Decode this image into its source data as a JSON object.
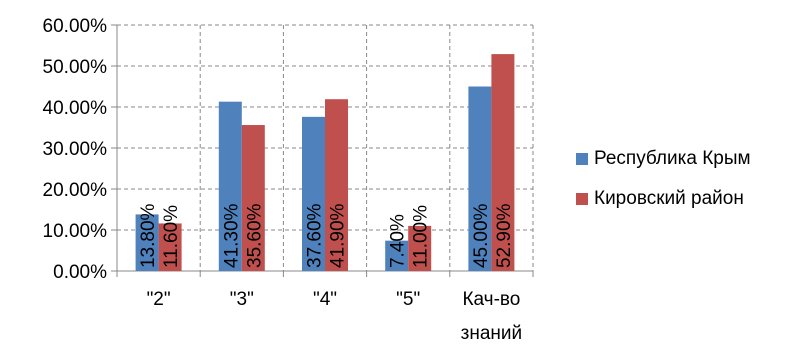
{
  "chart_data": {
    "type": "bar",
    "categories": [
      "\"2\"",
      "\"3\"",
      "\"4\"",
      "\"5\"",
      "Кач-во знаний"
    ],
    "category_lines": [
      [
        "\"2\""
      ],
      [
        "\"3\""
      ],
      [
        "\"4\""
      ],
      [
        "\"5\""
      ],
      [
        "Кач-во",
        "знаний"
      ]
    ],
    "series": [
      {
        "name": "Республика Крым",
        "color": "#4F81BD",
        "values": [
          13.8,
          41.3,
          37.6,
          7.4,
          45.0
        ],
        "labels": [
          "13.80%",
          "41.30%",
          "37.60%",
          "7.40%",
          "45.00%"
        ]
      },
      {
        "name": "Кировский район",
        "color": "#C0504D",
        "values": [
          11.6,
          35.6,
          41.9,
          11.0,
          52.9
        ],
        "labels": [
          "11.60%",
          "35.60%",
          "41.90%",
          "11.00%",
          "52.90%"
        ]
      }
    ],
    "y_ticks": [
      0,
      10,
      20,
      30,
      40,
      50,
      60
    ],
    "y_tick_labels": [
      "0.00%",
      "10.00%",
      "20.00%",
      "30.00%",
      "40.00%",
      "50.00%",
      "60.00%"
    ],
    "ylim": [
      0,
      60
    ],
    "grid": true,
    "legend_position": "right",
    "title": "",
    "xlabel": "",
    "ylabel": ""
  }
}
